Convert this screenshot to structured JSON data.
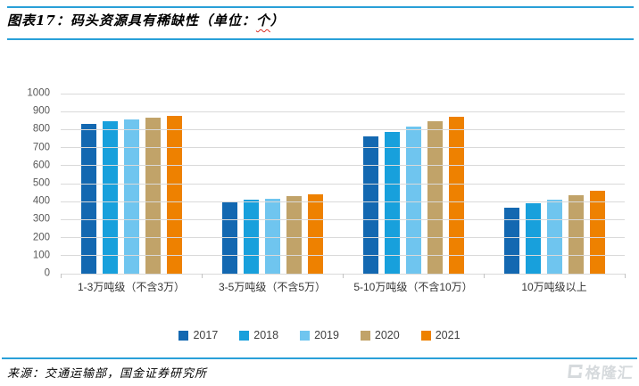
{
  "header": {
    "figure_label": "图表17：",
    "title": "码头资源具有稀缺性",
    "unit_prefix": "（单位：",
    "unit": "个",
    "unit_suffix": "）"
  },
  "chart_data": {
    "type": "bar",
    "title": "码头资源具有稀缺性（单位：个）",
    "categories": [
      "1-3万吨级（不含3万）",
      "3-5万吨级（不含5万）",
      "5-10万吨级（不含10万）",
      "10万吨级以上"
    ],
    "series": [
      {
        "name": "2017",
        "color": "#1368B1",
        "values": [
          833,
          394,
          762,
          368
        ]
      },
      {
        "name": "2018",
        "color": "#18A0DC",
        "values": [
          845,
          410,
          787,
          390
        ]
      },
      {
        "name": "2019",
        "color": "#6FC5EF",
        "values": [
          858,
          418,
          818,
          410
        ]
      },
      {
        "name": "2020",
        "color": "#C1A369",
        "values": [
          864,
          432,
          849,
          435
        ]
      },
      {
        "name": "2021",
        "color": "#EE8100",
        "values": [
          878,
          442,
          871,
          460
        ]
      }
    ],
    "ylim": [
      0,
      1000
    ],
    "ytick_step": 100,
    "grid": true,
    "legend_position": "bottom"
  },
  "footer": {
    "source_label": "来源：",
    "source_text": "交通运输部，国金证券研究所",
    "watermark": "格隆汇"
  },
  "style": {
    "divider_blue": "#29A0D8",
    "gridline_gray": "#D9D9D9",
    "axis_text_gray": "#595959",
    "wavy_underline_red": "#D93025",
    "watermark_gray": "#D6DADD"
  }
}
